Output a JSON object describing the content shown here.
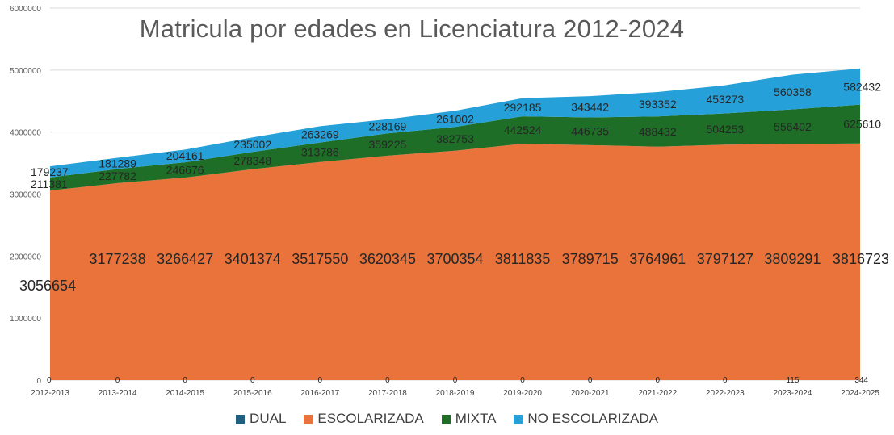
{
  "chart_data": {
    "type": "area",
    "stacked": true,
    "title": "Matricula por edades en Licenciatura 2012-2024",
    "xlabel": "",
    "ylabel": "",
    "ylim": [
      0,
      6000000
    ],
    "yticks": [
      0,
      1000000,
      2000000,
      3000000,
      4000000,
      5000000,
      6000000
    ],
    "ytick_labels": [
      "0",
      "1000000",
      "2000000",
      "3000000",
      "4000000",
      "5000000",
      "6000000"
    ],
    "grid": true,
    "legend_position": "bottom",
    "categories": [
      "2012-2013",
      "2013-2014",
      "2014-2015",
      "2015-2016",
      "2016-2017",
      "2017-2018",
      "2018-2019",
      "2019-2020",
      "2020-2021",
      "2021-2022",
      "2022-2023",
      "2023-2024",
      "2024-2025"
    ],
    "series": [
      {
        "name": "DUAL",
        "color": "#1f5f7f",
        "values": [
          0,
          0,
          0,
          0,
          0,
          0,
          0,
          0,
          0,
          0,
          0,
          115,
          344
        ]
      },
      {
        "name": "ESCOLARIZADA",
        "color": "#e9733a",
        "values": [
          3056654,
          3177238,
          3266427,
          3401374,
          3517550,
          3620345,
          3700354,
          3811835,
          3789715,
          3764961,
          3797127,
          3809291,
          3816723
        ]
      },
      {
        "name": "MIXTA",
        "color": "#1e6e27",
        "values": [
          211381,
          227782,
          246676,
          278348,
          313786,
          359225,
          382753,
          442524,
          446735,
          488432,
          504253,
          556402,
          625610
        ]
      },
      {
        "name": "NO ESCOLARIZADA",
        "color": "#25a0d8",
        "values": [
          179237,
          181289,
          204161,
          235002,
          263269,
          228169,
          261002,
          292185,
          343442,
          393352,
          453273,
          560358,
          582432
        ]
      }
    ]
  }
}
